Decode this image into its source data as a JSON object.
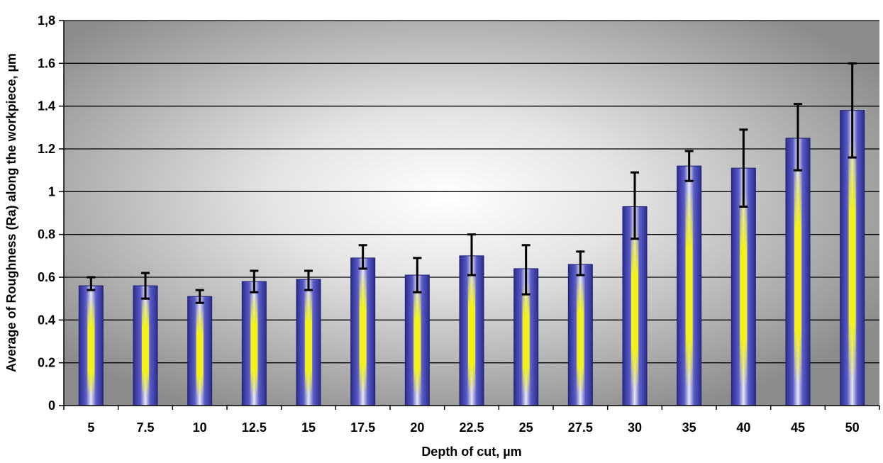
{
  "chart_data": {
    "type": "bar",
    "title": "",
    "xlabel": "Depth of cut, µm",
    "ylabel": "Average of Roughness (Ra) along the workpiece, µm",
    "categories": [
      "5",
      "7.5",
      "10",
      "12.5",
      "15",
      "17.5",
      "20",
      "22.5",
      "25",
      "27.5",
      "30",
      "35",
      "40",
      "45",
      "50"
    ],
    "values": [
      0.56,
      0.56,
      0.51,
      0.58,
      0.59,
      0.69,
      0.61,
      0.7,
      0.64,
      0.66,
      0.93,
      1.12,
      1.11,
      1.25,
      1.38
    ],
    "error_low": [
      0.54,
      0.5,
      0.48,
      0.53,
      0.54,
      0.64,
      0.53,
      0.61,
      0.52,
      0.61,
      0.78,
      1.05,
      0.93,
      1.1,
      1.16
    ],
    "error_high": [
      0.6,
      0.62,
      0.54,
      0.63,
      0.63,
      0.75,
      0.69,
      0.8,
      0.75,
      0.72,
      1.09,
      1.19,
      1.29,
      1.41,
      1.6
    ],
    "ylim": [
      0,
      1.8
    ],
    "yticks": [
      "0",
      "0.2",
      "0.4",
      "0.6",
      "0.8",
      "1",
      "1.2",
      "1.4",
      "1.6",
      "1,8"
    ],
    "grid": true,
    "legend": "none",
    "colors": {
      "bar_edge": "#2a2c8c",
      "bar_center": "#f2f21a",
      "gridline": "#000000",
      "background_dark": "#8a8a8a",
      "background_light": "#ffffff"
    }
  }
}
